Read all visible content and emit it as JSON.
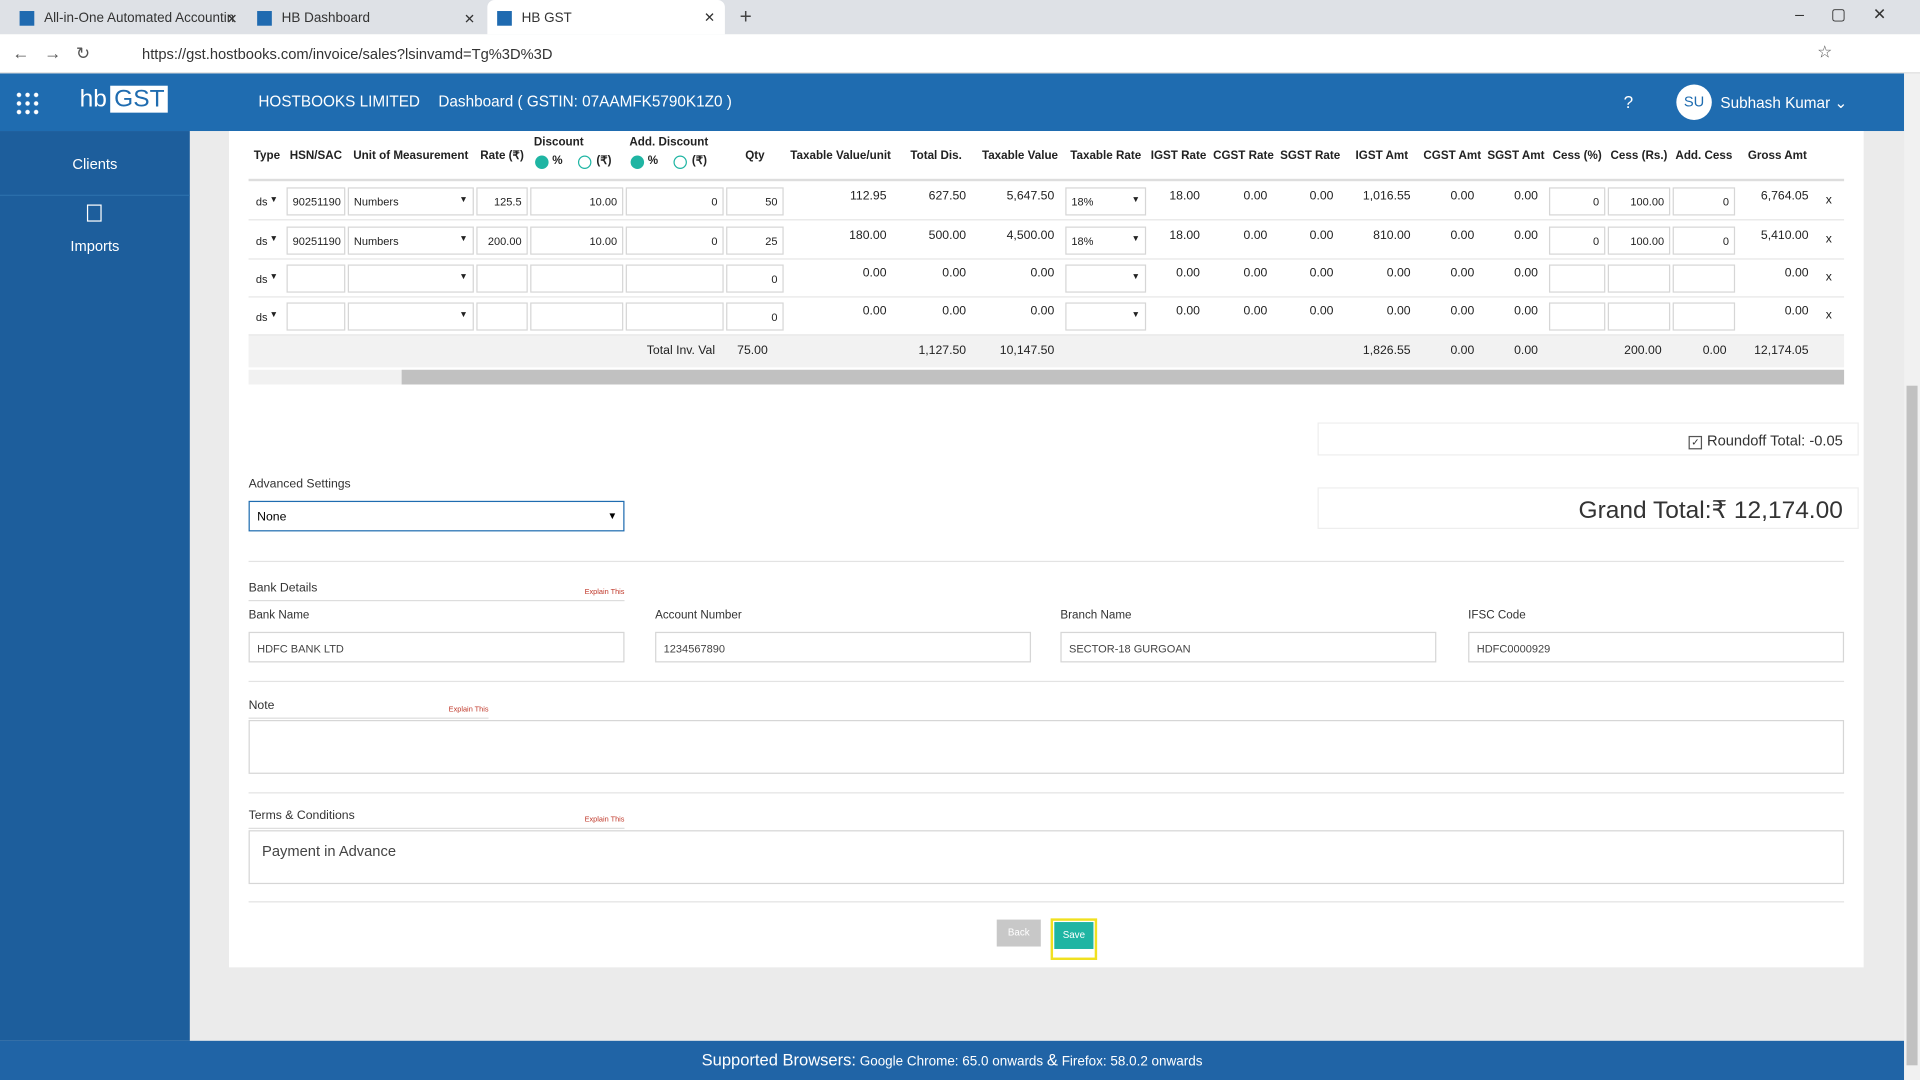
{
  "browser": {
    "tabs": [
      "All-in-One Automated Accountin",
      "HB Dashboard",
      "HB GST"
    ],
    "url": "https://gst.hostbooks.com/invoice/sales?lsinvamd=Tg%3D%3D"
  },
  "header": {
    "logo_left": "hb",
    "logo_right": "GST",
    "company": "HOSTBOOKS LIMITED",
    "dashboard": "Dashboard ( GSTIN: 07AAMFK5790K1Z0 )",
    "help": "?",
    "avatar": "SU",
    "user": "Subhash Kumar"
  },
  "sidebar": {
    "items": [
      "Clients",
      "Imports"
    ]
  },
  "table": {
    "headers": [
      "Type",
      "HSN/SAC",
      "Unit of Measurement",
      "Rate (₹)",
      {
        "label": "Discount",
        "options": [
          "%",
          "(₹)"
        ]
      },
      {
        "label": "Add. Discount",
        "options": [
          "%",
          "(₹)"
        ]
      },
      "Qty",
      "Taxable Value/unit",
      "Total Dis.",
      "Taxable Value",
      "Taxable Rate",
      "IGST Rate",
      "CGST Rate",
      "SGST Rate",
      "IGST Amt",
      "CGST Amt",
      "SGST Amt",
      "Cess (%)",
      "Cess (Rs.)",
      "Add. Cess",
      "Gross Amt",
      null
    ],
    "rows": [
      [
        "ds",
        "90251190",
        "Numbers",
        "125.5",
        "10.00",
        "0",
        "50",
        "112.95",
        "627.50",
        "5,647.50",
        "18%",
        "18.00",
        "0.00",
        "0.00",
        "1,016.55",
        "0.00",
        "0.00",
        "0",
        "100.00",
        "0",
        "6,764.05",
        "x"
      ],
      [
        "ds",
        "90251190",
        "Numbers",
        "200.00",
        "10.00",
        "0",
        "25",
        "180.00",
        "500.00",
        "4,500.00",
        "18%",
        "18.00",
        "0.00",
        "0.00",
        "810.00",
        "0.00",
        "0.00",
        "0",
        "100.00",
        "0",
        "5,410.00",
        "x"
      ],
      [
        "ds",
        null,
        null,
        null,
        null,
        null,
        "0",
        "0.00",
        "0.00",
        "0.00",
        null,
        "0.00",
        "0.00",
        "0.00",
        "0.00",
        "0.00",
        "0.00",
        null,
        null,
        null,
        "0.00",
        "x"
      ],
      [
        "ds",
        null,
        null,
        null,
        null,
        null,
        "0",
        "0.00",
        "0.00",
        "0.00",
        null,
        "0.00",
        "0.00",
        "0.00",
        "0.00",
        "0.00",
        "0.00",
        null,
        null,
        null,
        "0.00",
        "x"
      ]
    ],
    "totals": [
      null,
      null,
      null,
      null,
      null,
      "Total Inv. Val",
      "75.00",
      null,
      "1,127.50",
      "10,147.50",
      null,
      null,
      null,
      null,
      "1,826.55",
      "0.00",
      "0.00",
      null,
      "200.00",
      "0.00",
      "12,174.05",
      null
    ]
  },
  "summary": {
    "roundoff": "Roundoff Total: -0.05",
    "grand_total": "Grand Total:₹ 12,174.00"
  },
  "advanced": {
    "label": "Advanced Settings",
    "value": "None"
  },
  "bank": {
    "title": "Bank Details",
    "explain": "Explain This",
    "fields": [
      {
        "label": "Bank Name",
        "value": "HDFC BANK LTD"
      },
      {
        "label": "Account Number",
        "value": "1234567890"
      },
      {
        "label": "Branch Name",
        "value": "SECTOR-18 GURGOAN"
      },
      {
        "label": "IFSC Code",
        "value": "HDFC0000929"
      }
    ]
  },
  "note": {
    "label": "Note",
    "explain": "Explain This"
  },
  "terms": {
    "label": "Terms & Conditions",
    "explain": "Explain This",
    "value": "Payment in Advance"
  },
  "buttons": {
    "back": "Back",
    "save": "Save"
  },
  "footer": {
    "lead": "Supported Browsers:",
    "chrome": "Google Chrome: 65.0 onwards",
    "amp": "&",
    "firefox": "Firefox: 58.0.2 onwards"
  }
}
